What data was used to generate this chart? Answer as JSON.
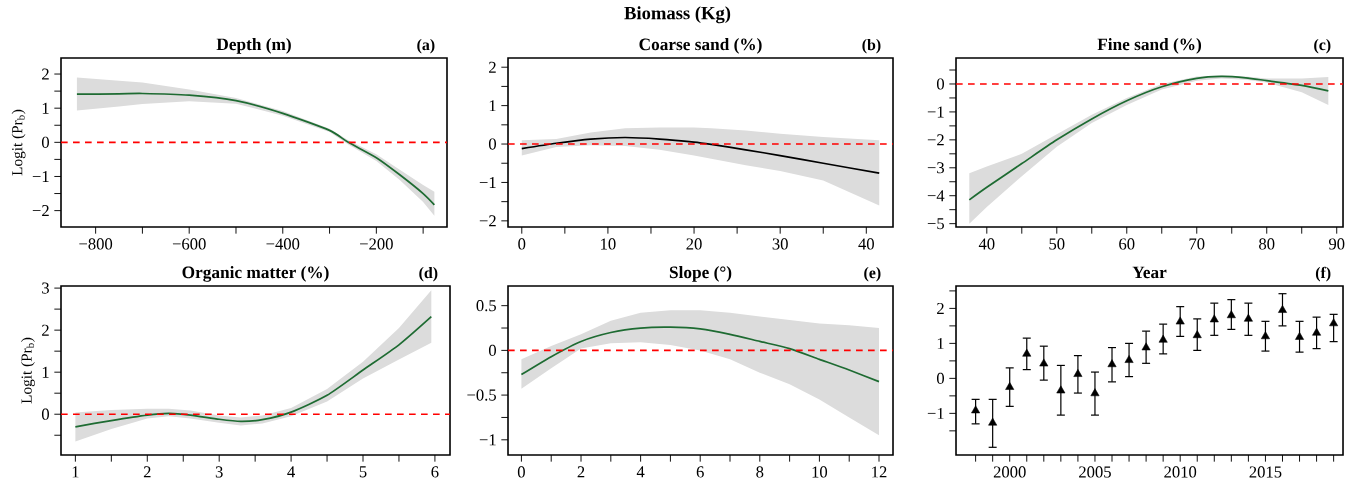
{
  "chart_data": [
    {
      "type": "line",
      "title": "Depth (m)",
      "ylabel": "Logit (Pr$_{b}$)",
      "annotations": [
        "(a)",
        "Biomass (Kg)"
      ],
      "xlim": [
        -874,
        -49
      ],
      "ylim": [
        -2.48,
        2.47
      ],
      "xticks": [
        {
          "value": -800,
          "label": "−800"
        },
        {
          "value": -700,
          "label": null
        },
        {
          "value": -600,
          "label": "−600"
        },
        {
          "value": -500,
          "label": null
        },
        {
          "value": -400,
          "label": "−400"
        },
        {
          "value": -300,
          "label": null
        },
        {
          "value": -200,
          "label": "−200"
        },
        {
          "value": -100,
          "label": null
        }
      ],
      "yticks": [
        {
          "value": -2,
          "label": "−2"
        },
        {
          "value": -1.5,
          "label": null
        },
        {
          "value": -1,
          "label": "−1"
        },
        {
          "value": -0.5,
          "label": null
        },
        0,
        {
          "value": 0.5,
          "label": null
        },
        1,
        {
          "value": 1.5,
          "label": null
        },
        2
      ],
      "x": [
        -840,
        -750,
        -700,
        -600,
        -500,
        -400,
        -300,
        -260,
        -200,
        -150,
        -100,
        -76
      ],
      "series": [
        {
          "color": "#1e6b32",
          "values": [
            1.41,
            1.42,
            1.43,
            1.38,
            1.22,
            0.85,
            0.35,
            0,
            -0.45,
            -0.95,
            -1.5,
            -1.83
          ],
          "upper": [
            1.9,
            1.8,
            1.75,
            1.55,
            1.3,
            0.92,
            0.4,
            0.06,
            -0.35,
            -0.8,
            -1.25,
            -1.45
          ],
          "lower": [
            0.93,
            1.05,
            1.12,
            1.2,
            1.13,
            0.78,
            0.3,
            -0.06,
            -0.55,
            -1.1,
            -1.75,
            -2.15
          ]
        }
      ],
      "ref_lines": [
        {
          "axis": "y",
          "value": 0,
          "color": "#ff0000",
          "line_style": "dashed"
        }
      ]
    },
    {
      "type": "line",
      "title": "Coarse sand (%)",
      "annotations": [
        "(b)"
      ],
      "xlim": [
        -1.6,
        43.1
      ],
      "ylim": [
        -2.16,
        2.24
      ],
      "xticks": [
        0,
        {
          "value": 5,
          "label": null
        },
        10,
        {
          "value": 15,
          "label": null
        },
        20,
        {
          "value": 25,
          "label": null
        },
        30,
        {
          "value": 35,
          "label": null
        },
        40
      ],
      "yticks": [
        {
          "value": -2,
          "label": "−2"
        },
        {
          "value": -1.5,
          "label": null
        },
        {
          "value": -1,
          "label": "−1"
        },
        {
          "value": -0.5,
          "label": null
        },
        0,
        {
          "value": 0.5,
          "label": null
        },
        1,
        {
          "value": 1.5,
          "label": null
        },
        2
      ],
      "x": [
        0,
        4,
        8,
        12,
        16,
        20,
        22,
        26,
        30,
        35,
        41.5
      ],
      "series": [
        {
          "color": "#000000",
          "values": [
            -0.12,
            0.02,
            0.13,
            0.17,
            0.13,
            0.05,
            -0.01,
            -0.15,
            -0.3,
            -0.5,
            -0.76
          ],
          "upper": [
            0.1,
            0.13,
            0.3,
            0.41,
            0.43,
            0.43,
            0.41,
            0.35,
            0.27,
            0.18,
            0.1
          ],
          "lower": [
            -0.3,
            -0.08,
            -0.03,
            -0.05,
            -0.15,
            -0.3,
            -0.38,
            -0.55,
            -0.7,
            -0.95,
            -1.6
          ]
        }
      ],
      "ref_lines": [
        {
          "axis": "y",
          "value": 0,
          "color": "#ff0000",
          "line_style": "dashed"
        }
      ]
    },
    {
      "type": "line",
      "title": "Fine sand (%)",
      "annotations": [
        "(c)"
      ],
      "xlim": [
        35.6,
        90.9
      ],
      "ylim": [
        -5.12,
        0.93
      ],
      "xticks": [
        40,
        {
          "value": 45,
          "label": null
        },
        50,
        {
          "value": 55,
          "label": null
        },
        60,
        {
          "value": 65,
          "label": null
        },
        70,
        {
          "value": 75,
          "label": null
        },
        80,
        {
          "value": 85,
          "label": null
        },
        90
      ],
      "yticks": [
        {
          "value": -5,
          "label": "−5"
        },
        {
          "value": -4.5,
          "label": null
        },
        {
          "value": -4,
          "label": "−4"
        },
        {
          "value": -3.5,
          "label": null
        },
        {
          "value": -3,
          "label": "−3"
        },
        {
          "value": -2.5,
          "label": null
        },
        {
          "value": -2,
          "label": "−2"
        },
        {
          "value": -1.5,
          "label": null
        },
        {
          "value": -1,
          "label": "−1"
        },
        {
          "value": -0.5,
          "label": null
        },
        0,
        {
          "value": 0.5,
          "label": null
        }
      ],
      "x": [
        37.5,
        40,
        45,
        50,
        55,
        60,
        65,
        70,
        73.5,
        77,
        80,
        85,
        88.8
      ],
      "series": [
        {
          "color": "#1e6b32",
          "values": [
            -4.15,
            -3.7,
            -2.85,
            -2.0,
            -1.25,
            -0.6,
            -0.1,
            0.2,
            0.27,
            0.22,
            0.12,
            -0.05,
            -0.25
          ],
          "upper": [
            -3.2,
            -2.95,
            -2.5,
            -1.8,
            -1.1,
            -0.5,
            0.0,
            0.27,
            0.3,
            0.27,
            0.2,
            0.2,
            0.25
          ],
          "lower": [
            -5.0,
            -4.4,
            -3.3,
            -2.25,
            -1.4,
            -0.75,
            -0.2,
            0.12,
            0.2,
            0.15,
            0.05,
            -0.3,
            -0.75
          ]
        }
      ],
      "ref_lines": [
        {
          "axis": "y",
          "value": 0,
          "color": "#ff0000",
          "line_style": "dashed"
        }
      ]
    },
    {
      "type": "line",
      "title": "Organic matter (%)",
      "ylabel": "Logit (Pr$_{b}$)",
      "annotations": [
        "(d)"
      ],
      "xlim": [
        0.8,
        6.21
      ],
      "ylim": [
        -0.97,
        3.05
      ],
      "xticks": [
        1,
        {
          "value": 1.5,
          "label": null
        },
        2,
        {
          "value": 2.5,
          "label": null
        },
        3,
        {
          "value": 3.5,
          "label": null
        },
        4,
        {
          "value": 4.5,
          "label": null
        },
        5,
        {
          "value": 5.5,
          "label": null
        },
        6
      ],
      "yticks": [
        {
          "value": -0.5,
          "label": null
        },
        0,
        {
          "value": 0.5,
          "label": null
        },
        1,
        {
          "value": 1.5,
          "label": null
        },
        2,
        {
          "value": 2.5,
          "label": null
        },
        3
      ],
      "x": [
        1,
        1.5,
        2,
        2.3,
        2.6,
        3,
        3.3,
        3.6,
        4,
        4.5,
        5,
        5.5,
        5.95
      ],
      "series": [
        {
          "color": "#1e6b32",
          "values": [
            -0.3,
            -0.15,
            -0.02,
            0.02,
            -0.02,
            -0.12,
            -0.17,
            -0.13,
            0.05,
            0.45,
            1.05,
            1.65,
            2.32
          ],
          "upper": [
            0.04,
            0.1,
            0.13,
            0.13,
            0.09,
            -0.03,
            -0.08,
            -0.03,
            0.15,
            0.6,
            1.25,
            2.05,
            2.95
          ],
          "lower": [
            -0.65,
            -0.35,
            -0.1,
            -0.05,
            -0.1,
            -0.2,
            -0.27,
            -0.22,
            -0.05,
            0.3,
            0.85,
            1.3,
            1.7
          ]
        }
      ],
      "ref_lines": [
        {
          "axis": "y",
          "value": 0,
          "color": "#ff0000",
          "line_style": "dashed"
        }
      ]
    },
    {
      "type": "line",
      "title": "Slope (°)",
      "annotations": [
        "(e)"
      ],
      "xlim": [
        -0.45,
        12.47
      ],
      "ylim": [
        -1.17,
        0.72
      ],
      "xticks": [
        0,
        {
          "value": 1,
          "label": null
        },
        2,
        {
          "value": 3,
          "label": null
        },
        4,
        {
          "value": 5,
          "label": null
        },
        6,
        {
          "value": 7,
          "label": null
        },
        8,
        {
          "value": 9,
          "label": null
        },
        10,
        {
          "value": 11,
          "label": null
        },
        12
      ],
      "yticks": [
        {
          "value": -1,
          "label": "−1"
        },
        {
          "value": -0.75,
          "label": null
        },
        {
          "value": -0.5,
          "label": "−0.5"
        },
        {
          "value": -0.25,
          "label": null
        },
        0,
        {
          "value": 0.25,
          "label": null
        },
        0.5
      ],
      "x": [
        0,
        1,
        2,
        3,
        4,
        5,
        6,
        7,
        8,
        9,
        10,
        11,
        12
      ],
      "series": [
        {
          "color": "#1e6b32",
          "values": [
            -0.27,
            -0.07,
            0.1,
            0.2,
            0.25,
            0.26,
            0.24,
            0.18,
            0.1,
            0.02,
            -0.1,
            -0.22,
            -0.35
          ],
          "upper": [
            -0.1,
            0.05,
            0.18,
            0.33,
            0.42,
            0.45,
            0.45,
            0.42,
            0.38,
            0.34,
            0.3,
            0.28,
            0.25
          ],
          "lower": [
            -0.43,
            -0.2,
            0.02,
            0.08,
            0.09,
            0.06,
            0.0,
            -0.1,
            -0.25,
            -0.38,
            -0.55,
            -0.75,
            -0.95
          ]
        }
      ],
      "ref_lines": [
        {
          "axis": "y",
          "value": 0,
          "color": "#ff0000",
          "line_style": "dashed"
        }
      ]
    },
    {
      "type": "scatter",
      "title": "Year",
      "annotations": [
        "(f)"
      ],
      "marker": "triangle",
      "xlim": [
        1996.85,
        2019.55
      ],
      "ylim": [
        -2.19,
        2.64
      ],
      "xticks": [
        {
          "value": 1998,
          "label": null
        },
        {
          "value": 1999,
          "label": null
        },
        2000,
        {
          "value": 2001,
          "label": null
        },
        {
          "value": 2002,
          "label": null
        },
        {
          "value": 2003,
          "label": null
        },
        {
          "value": 2004,
          "label": null
        },
        2005,
        {
          "value": 2006,
          "label": null
        },
        {
          "value": 2007,
          "label": null
        },
        {
          "value": 2008,
          "label": null
        },
        {
          "value": 2009,
          "label": null
        },
        2010,
        {
          "value": 2011,
          "label": null
        },
        {
          "value": 2012,
          "label": null
        },
        {
          "value": 2013,
          "label": null
        },
        {
          "value": 2014,
          "label": null
        },
        2015,
        {
          "value": 2016,
          "label": null
        },
        {
          "value": 2017,
          "label": null
        },
        {
          "value": 2018,
          "label": null
        },
        {
          "value": 2019,
          "label": null
        }
      ],
      "yticks": [
        {
          "value": -1.5,
          "label": null
        },
        {
          "value": -1,
          "label": "−1"
        },
        {
          "value": -0.5,
          "label": null
        },
        0,
        {
          "value": 0.5,
          "label": null
        },
        1,
        {
          "value": 1.5,
          "label": null
        },
        2,
        {
          "value": 2.5,
          "label": null
        }
      ],
      "x": [
        1998,
        1999,
        2000,
        2001,
        2002,
        2003,
        2004,
        2005,
        2006,
        2007,
        2008,
        2009,
        2010,
        2011,
        2012,
        2013,
        2014,
        2015,
        2016,
        2017,
        2018,
        2019
      ],
      "series": [
        {
          "color": "#000000",
          "values": [
            -0.92,
            -1.27,
            -0.25,
            0.7,
            0.42,
            -0.35,
            0.12,
            -0.43,
            0.4,
            0.52,
            0.88,
            1.1,
            1.62,
            1.23,
            1.68,
            1.8,
            1.7,
            1.2,
            1.95,
            1.18,
            1.3,
            1.57
          ],
          "errors": [
            [
              -1.3,
              -0.6
            ],
            [
              -1.97,
              -0.6
            ],
            [
              -0.8,
              0.3
            ],
            [
              0.25,
              1.15
            ],
            [
              -0.05,
              0.92
            ],
            [
              -1.05,
              0.37
            ],
            [
              -0.42,
              0.65
            ],
            [
              -1.05,
              0.18
            ],
            [
              -0.1,
              0.88
            ],
            [
              0.05,
              1.0
            ],
            [
              0.43,
              1.35
            ],
            [
              0.7,
              1.55
            ],
            [
              1.2,
              2.05
            ],
            [
              0.8,
              1.7
            ],
            [
              1.23,
              2.15
            ],
            [
              1.4,
              2.25
            ],
            [
              1.23,
              2.15
            ],
            [
              0.78,
              1.63
            ],
            [
              1.5,
              2.42
            ],
            [
              0.75,
              1.63
            ],
            [
              0.85,
              1.75
            ],
            [
              1.05,
              1.83
            ]
          ]
        }
      ]
    }
  ]
}
